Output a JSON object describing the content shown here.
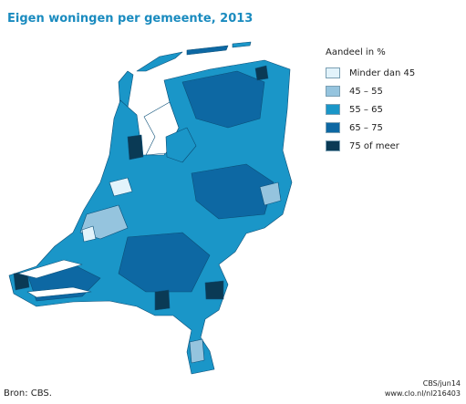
{
  "title": "Eigen woningen per gemeente, 2013",
  "legend": {
    "title": "Aandeel in %",
    "items": [
      {
        "label": "Minder dan 45",
        "color": "#e2f3fb"
      },
      {
        "label": "45 – 55",
        "color": "#95c4de"
      },
      {
        "label": "55 – 65",
        "color": "#1a96c8"
      },
      {
        "label": "65 – 75",
        "color": "#0d68a3"
      },
      {
        "label": "75 of meer",
        "color": "#0a3a55"
      }
    ]
  },
  "source": "Bron: CBS.",
  "credits": [
    "CBS/jun14",
    "www.clo.nl/nl216403"
  ]
}
